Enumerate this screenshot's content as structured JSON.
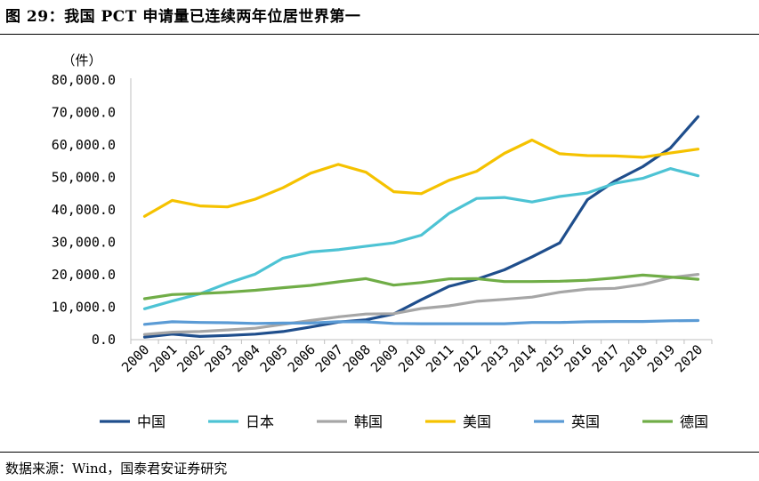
{
  "header": {
    "title": "图 29：我国 PCT 申请量已连续两年位居世界第一"
  },
  "footer": {
    "source": "数据来源：Wind，国泰君安证券研究"
  },
  "chart_data": {
    "type": "line",
    "title": "",
    "ylabel": "（件）",
    "xlabel": "",
    "ylim": [
      0,
      80000
    ],
    "yticks": [
      0,
      10000,
      20000,
      30000,
      40000,
      50000,
      60000,
      70000,
      80000
    ],
    "ytick_labels": [
      "0.0",
      "10,000.0",
      "20,000.0",
      "30,000.0",
      "40,000.0",
      "50,000.0",
      "60,000.0",
      "70,000.0",
      "80,000.0"
    ],
    "categories": [
      "2000",
      "2001",
      "2002",
      "2003",
      "2004",
      "2005",
      "2006",
      "2007",
      "2008",
      "2009",
      "2010",
      "2011",
      "2012",
      "2013",
      "2014",
      "2015",
      "2016",
      "2017",
      "2018",
      "2019",
      "2020"
    ],
    "legend_position": "bottom",
    "series": [
      {
        "name": "中国",
        "color": "#1f4e8c",
        "values": [
          800,
          1700,
          1000,
          1300,
          1700,
          2500,
          3900,
          5400,
          6100,
          7900,
          12300,
          16400,
          18600,
          21500,
          25500,
          29800,
          43100,
          48900,
          53300,
          59000,
          68700
        ]
      },
      {
        "name": "日本",
        "color": "#4dc3d4",
        "values": [
          9500,
          11900,
          14100,
          17400,
          20200,
          25100,
          27000,
          27700,
          28800,
          29800,
          32200,
          38900,
          43500,
          43800,
          42400,
          44100,
          45200,
          48200,
          49700,
          52700,
          50500
        ]
      },
      {
        "name": "韩国",
        "color": "#a6a6a6",
        "values": [
          1600,
          2300,
          2500,
          3000,
          3500,
          4700,
          5900,
          7000,
          7900,
          8000,
          9600,
          10400,
          11800,
          12400,
          13100,
          14600,
          15600,
          15800,
          17000,
          19100,
          20100
        ]
      },
      {
        "name": "美国",
        "color": "#f5c200",
        "values": [
          38000,
          42900,
          41200,
          40900,
          43300,
          46800,
          51300,
          54000,
          51600,
          45600,
          45000,
          49100,
          51900,
          57400,
          61500,
          57300,
          56700,
          56600,
          56200,
          57500,
          58700
        ]
      },
      {
        "name": "英国",
        "color": "#5b9bd5",
        "values": [
          4700,
          5500,
          5300,
          5200,
          5000,
          5100,
          5100,
          5500,
          5500,
          5000,
          4900,
          4900,
          4900,
          4900,
          5300,
          5300,
          5500,
          5600,
          5600,
          5800,
          5900
        ]
      },
      {
        "name": "德国",
        "color": "#70ad47",
        "values": [
          12600,
          13900,
          14200,
          14600,
          15200,
          16000,
          16700,
          17800,
          18800,
          16800,
          17600,
          18700,
          18800,
          17900,
          17900,
          18000,
          18300,
          19000,
          19900,
          19300,
          18600
        ]
      }
    ]
  }
}
